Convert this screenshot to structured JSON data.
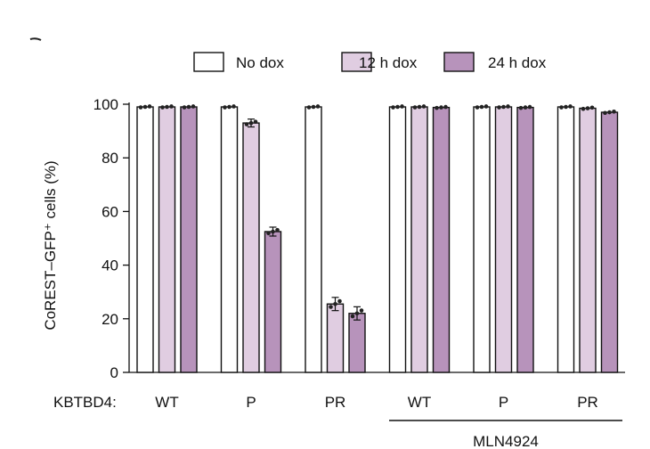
{
  "chart_data": {
    "type": "bar",
    "ylabel": "CoREST–GFP⁺ cells (%)",
    "ylim": [
      0,
      100
    ],
    "yticks": [
      0,
      20,
      40,
      60,
      80,
      100
    ],
    "row_label": "KBTBD4:",
    "categories": [
      "WT",
      "P",
      "PR",
      "WT",
      "P",
      "PR"
    ],
    "group_label": "MLN4924",
    "group_span": [
      3,
      5
    ],
    "legend": {
      "placement": "top"
    },
    "series": [
      {
        "name": "No dox",
        "color": "#ffffff",
        "values": [
          99,
          99,
          99,
          99,
          99,
          99
        ],
        "errors": [
          0.3,
          0.3,
          0.3,
          0.3,
          0.3,
          0.3
        ]
      },
      {
        "name": "12 h dox",
        "color": "#e0cde1",
        "values": [
          99,
          93,
          25.5,
          99,
          99,
          98.5
        ],
        "errors": [
          0.3,
          0.8,
          1.8,
          0.3,
          0.3,
          0.4
        ]
      },
      {
        "name": "24 h dox",
        "color": "#b793bb",
        "values": [
          99,
          52.5,
          22,
          98.8,
          98.8,
          97
        ],
        "errors": [
          0.3,
          1.0,
          1.8,
          0.3,
          0.3,
          0.4
        ]
      }
    ]
  }
}
